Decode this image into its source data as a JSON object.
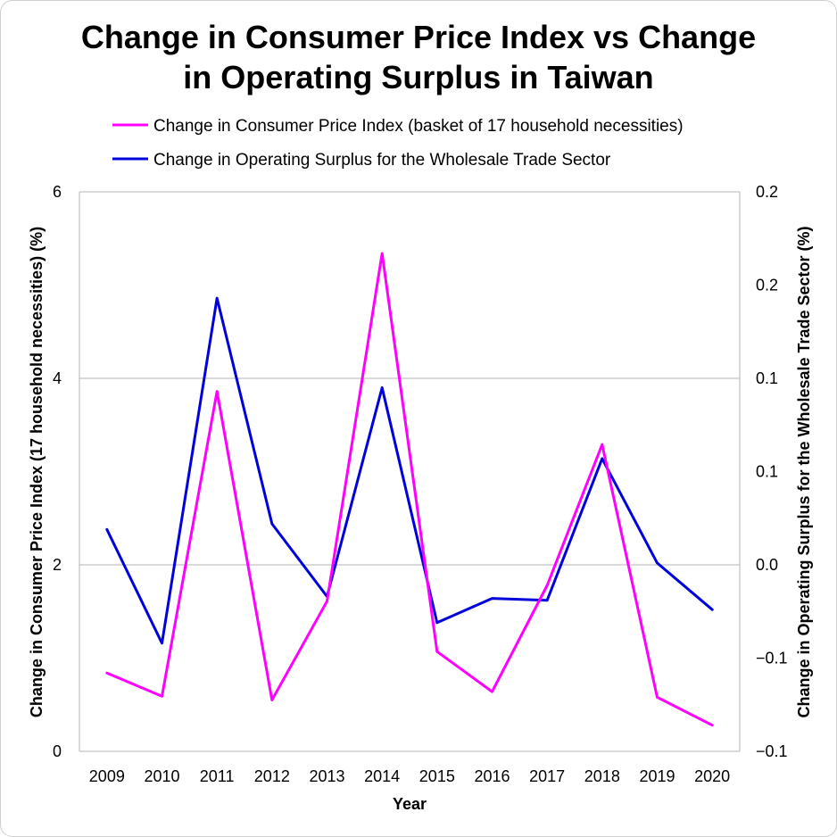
{
  "chart_data": {
    "type": "line",
    "title_lines": [
      "Change in Consumer Price Index vs Change",
      "in Operating Surplus in Taiwan"
    ],
    "xlabel": "Year",
    "ylabel_left": "Change in Consumer Price Index (17 household necessities) (%)",
    "ylabel_right": "Change in Operating Surplus for the Wholesale Trade Sector (%)",
    "categories": [
      "2009",
      "2010",
      "2011",
      "2012",
      "2013",
      "2014",
      "2015",
      "2016",
      "2017",
      "2018",
      "2019",
      "2020"
    ],
    "left_axis": {
      "ylim": [
        0,
        6
      ],
      "ticks": [
        0,
        2,
        4,
        6
      ],
      "tick_labels": [
        "0",
        "2",
        "4",
        "6"
      ]
    },
    "right_axis": {
      "ylim": [
        -0.1,
        0.2
      ],
      "ticks": [
        -0.1,
        -0.05,
        0,
        0.05,
        0.1,
        0.15,
        0.2
      ],
      "tick_labels": [
        "−0.1",
        "−0.1",
        "0.0",
        "0.1",
        "0.1",
        "0.2",
        "0.2"
      ]
    },
    "grid": true,
    "legend_position": "top",
    "series": [
      {
        "name": "Change in Consumer Price Index (basket of 17 household necessities)",
        "axis": "left",
        "color": "#ff00ff",
        "values": [
          0.84,
          0.59,
          3.86,
          0.55,
          1.61,
          5.34,
          1.07,
          0.64,
          1.78,
          3.29,
          0.58,
          0.28
        ]
      },
      {
        "name": "Change in Operating Surplus for the Wholesale Trade Sector",
        "axis": "right",
        "color": "#0000dd",
        "values": [
          0.019,
          -0.042,
          0.143,
          0.022,
          -0.017,
          0.095,
          -0.031,
          -0.018,
          -0.019,
          0.057,
          0.001,
          -0.024
        ]
      }
    ]
  }
}
